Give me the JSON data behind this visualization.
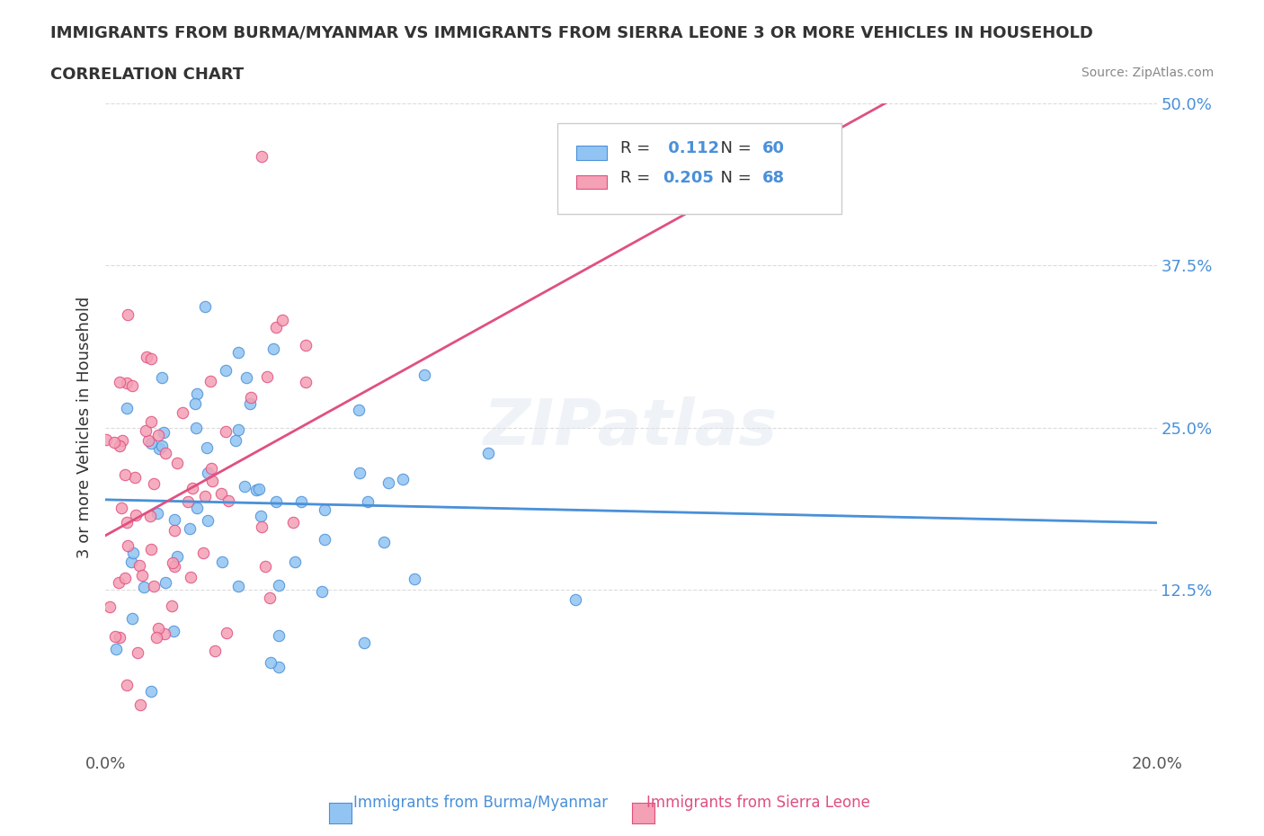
{
  "title": "IMMIGRANTS FROM BURMA/MYANMAR VS IMMIGRANTS FROM SIERRA LEONE 3 OR MORE VEHICLES IN HOUSEHOLD",
  "subtitle": "CORRELATION CHART",
  "source": "Source: ZipAtlas.com",
  "xlabel": "",
  "ylabel": "3 or more Vehicles in Household",
  "legend_label_1": "Immigrants from Burma/Myanmar",
  "legend_label_2": "Immigrants from Sierra Leone",
  "R1": 0.112,
  "N1": 60,
  "R2": 0.205,
  "N2": 68,
  "color1": "#91c4f2",
  "color2": "#f4a0b5",
  "trendline1_color": "#4a90d9",
  "trendline2_color": "#e05080",
  "dashed_line_color": "#91c4f2",
  "xlim": [
    0.0,
    0.2
  ],
  "ylim": [
    0.0,
    0.5
  ],
  "xticks": [
    0.0,
    0.05,
    0.1,
    0.15,
    0.2
  ],
  "yticks": [
    0.0,
    0.125,
    0.25,
    0.375,
    0.5
  ],
  "xticklabels": [
    "0.0%",
    "",
    "",
    "",
    "20.0%"
  ],
  "yticklabels": [
    "",
    "12.5%",
    "25.0%",
    "37.5%",
    "50.0%"
  ],
  "watermark": "ZIPatlas",
  "background_color": "#ffffff",
  "seed1": 42,
  "seed2": 123
}
